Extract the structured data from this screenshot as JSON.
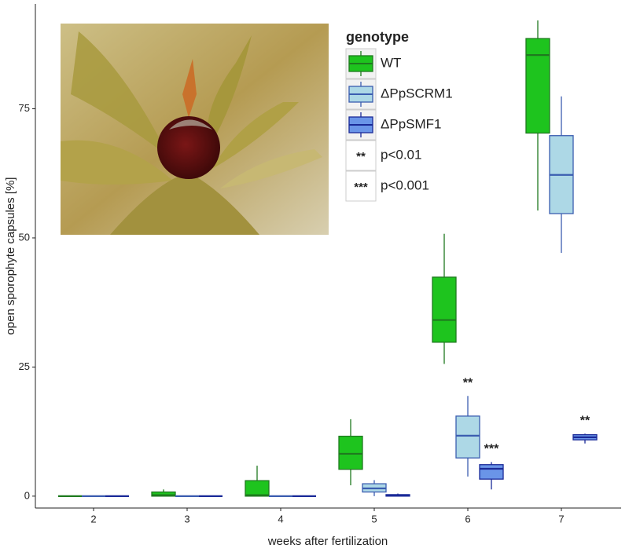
{
  "chart_data": {
    "type": "box",
    "x_label": "weeks after fertilization",
    "y_label": "open sporophyte capsules [%]",
    "categories": [
      "2",
      "3",
      "4",
      "5",
      "6",
      "7"
    ],
    "ylim": [
      -2.3,
      95.3
    ],
    "yticks": [
      0,
      25,
      50,
      75
    ],
    "grid": false,
    "legend_title": "genotype",
    "legend_position": "top-right",
    "series": [
      {
        "name": "WT",
        "color": "#1ec41e",
        "edge": "#1f7a1f",
        "values": [
          {
            "min": 0,
            "q1": 0,
            "median": 0,
            "q3": 0,
            "max": 0
          },
          {
            "min": 0,
            "q1": 0,
            "median": 0.2,
            "q3": 0.8,
            "max": 1.3
          },
          {
            "min": 0,
            "q1": 0,
            "median": 0.2,
            "q3": 3,
            "max": 5.9
          },
          {
            "min": 2.1,
            "q1": 5.2,
            "median": 8.2,
            "q3": 11.6,
            "max": 14.9
          },
          {
            "min": 25.6,
            "q1": 29.8,
            "median": 34.1,
            "q3": 42.4,
            "max": 50.8
          },
          {
            "min": 55.3,
            "q1": 70.3,
            "median": 85.4,
            "q3": 88.6,
            "max": 92.1
          }
        ],
        "significance": [
          null,
          null,
          null,
          null,
          null,
          null
        ]
      },
      {
        "name": "ΔPpSCRM1",
        "color": "#add8e6",
        "edge": "#3b5db0",
        "values": [
          {
            "min": 0,
            "q1": 0,
            "median": 0,
            "q3": 0,
            "max": 0
          },
          {
            "min": 0,
            "q1": 0,
            "median": 0,
            "q3": 0,
            "max": 0
          },
          {
            "min": 0,
            "q1": 0,
            "median": 0,
            "q3": 0,
            "max": 0
          },
          {
            "min": 0,
            "q1": 0.8,
            "median": 1.5,
            "q3": 2.4,
            "max": 3.1
          },
          {
            "min": 3.8,
            "q1": 7.4,
            "median": 11.7,
            "q3": 15.5,
            "max": 19.4
          },
          {
            "min": 47.1,
            "q1": 54.7,
            "median": 62.2,
            "q3": 69.8,
            "max": 77.4
          }
        ],
        "significance": [
          null,
          null,
          null,
          null,
          "**",
          null
        ]
      },
      {
        "name": "ΔPpSMF1",
        "color": "#6a95e8",
        "edge": "#1a2a98",
        "values": [
          {
            "min": 0,
            "q1": 0,
            "median": 0,
            "q3": 0,
            "max": 0
          },
          {
            "min": 0,
            "q1": 0,
            "median": 0,
            "q3": 0,
            "max": 0
          },
          {
            "min": 0,
            "q1": 0,
            "median": 0,
            "q3": 0,
            "max": 0
          },
          {
            "min": 0,
            "q1": 0,
            "median": 0.2,
            "q3": 0.3,
            "max": 0.5
          },
          {
            "min": 1.3,
            "q1": 3.3,
            "median": 5.3,
            "q3": 6.1,
            "max": 6.6
          },
          {
            "min": 10.2,
            "q1": 10.9,
            "median": 11.4,
            "q3": 11.9,
            "max": 12.1
          }
        ],
        "significance": [
          null,
          null,
          null,
          null,
          "***",
          "**"
        ]
      }
    ],
    "significance_legend": [
      {
        "symbol": "**",
        "label": "p<0.01"
      },
      {
        "symbol": "***",
        "label": "p<0.001"
      }
    ]
  }
}
